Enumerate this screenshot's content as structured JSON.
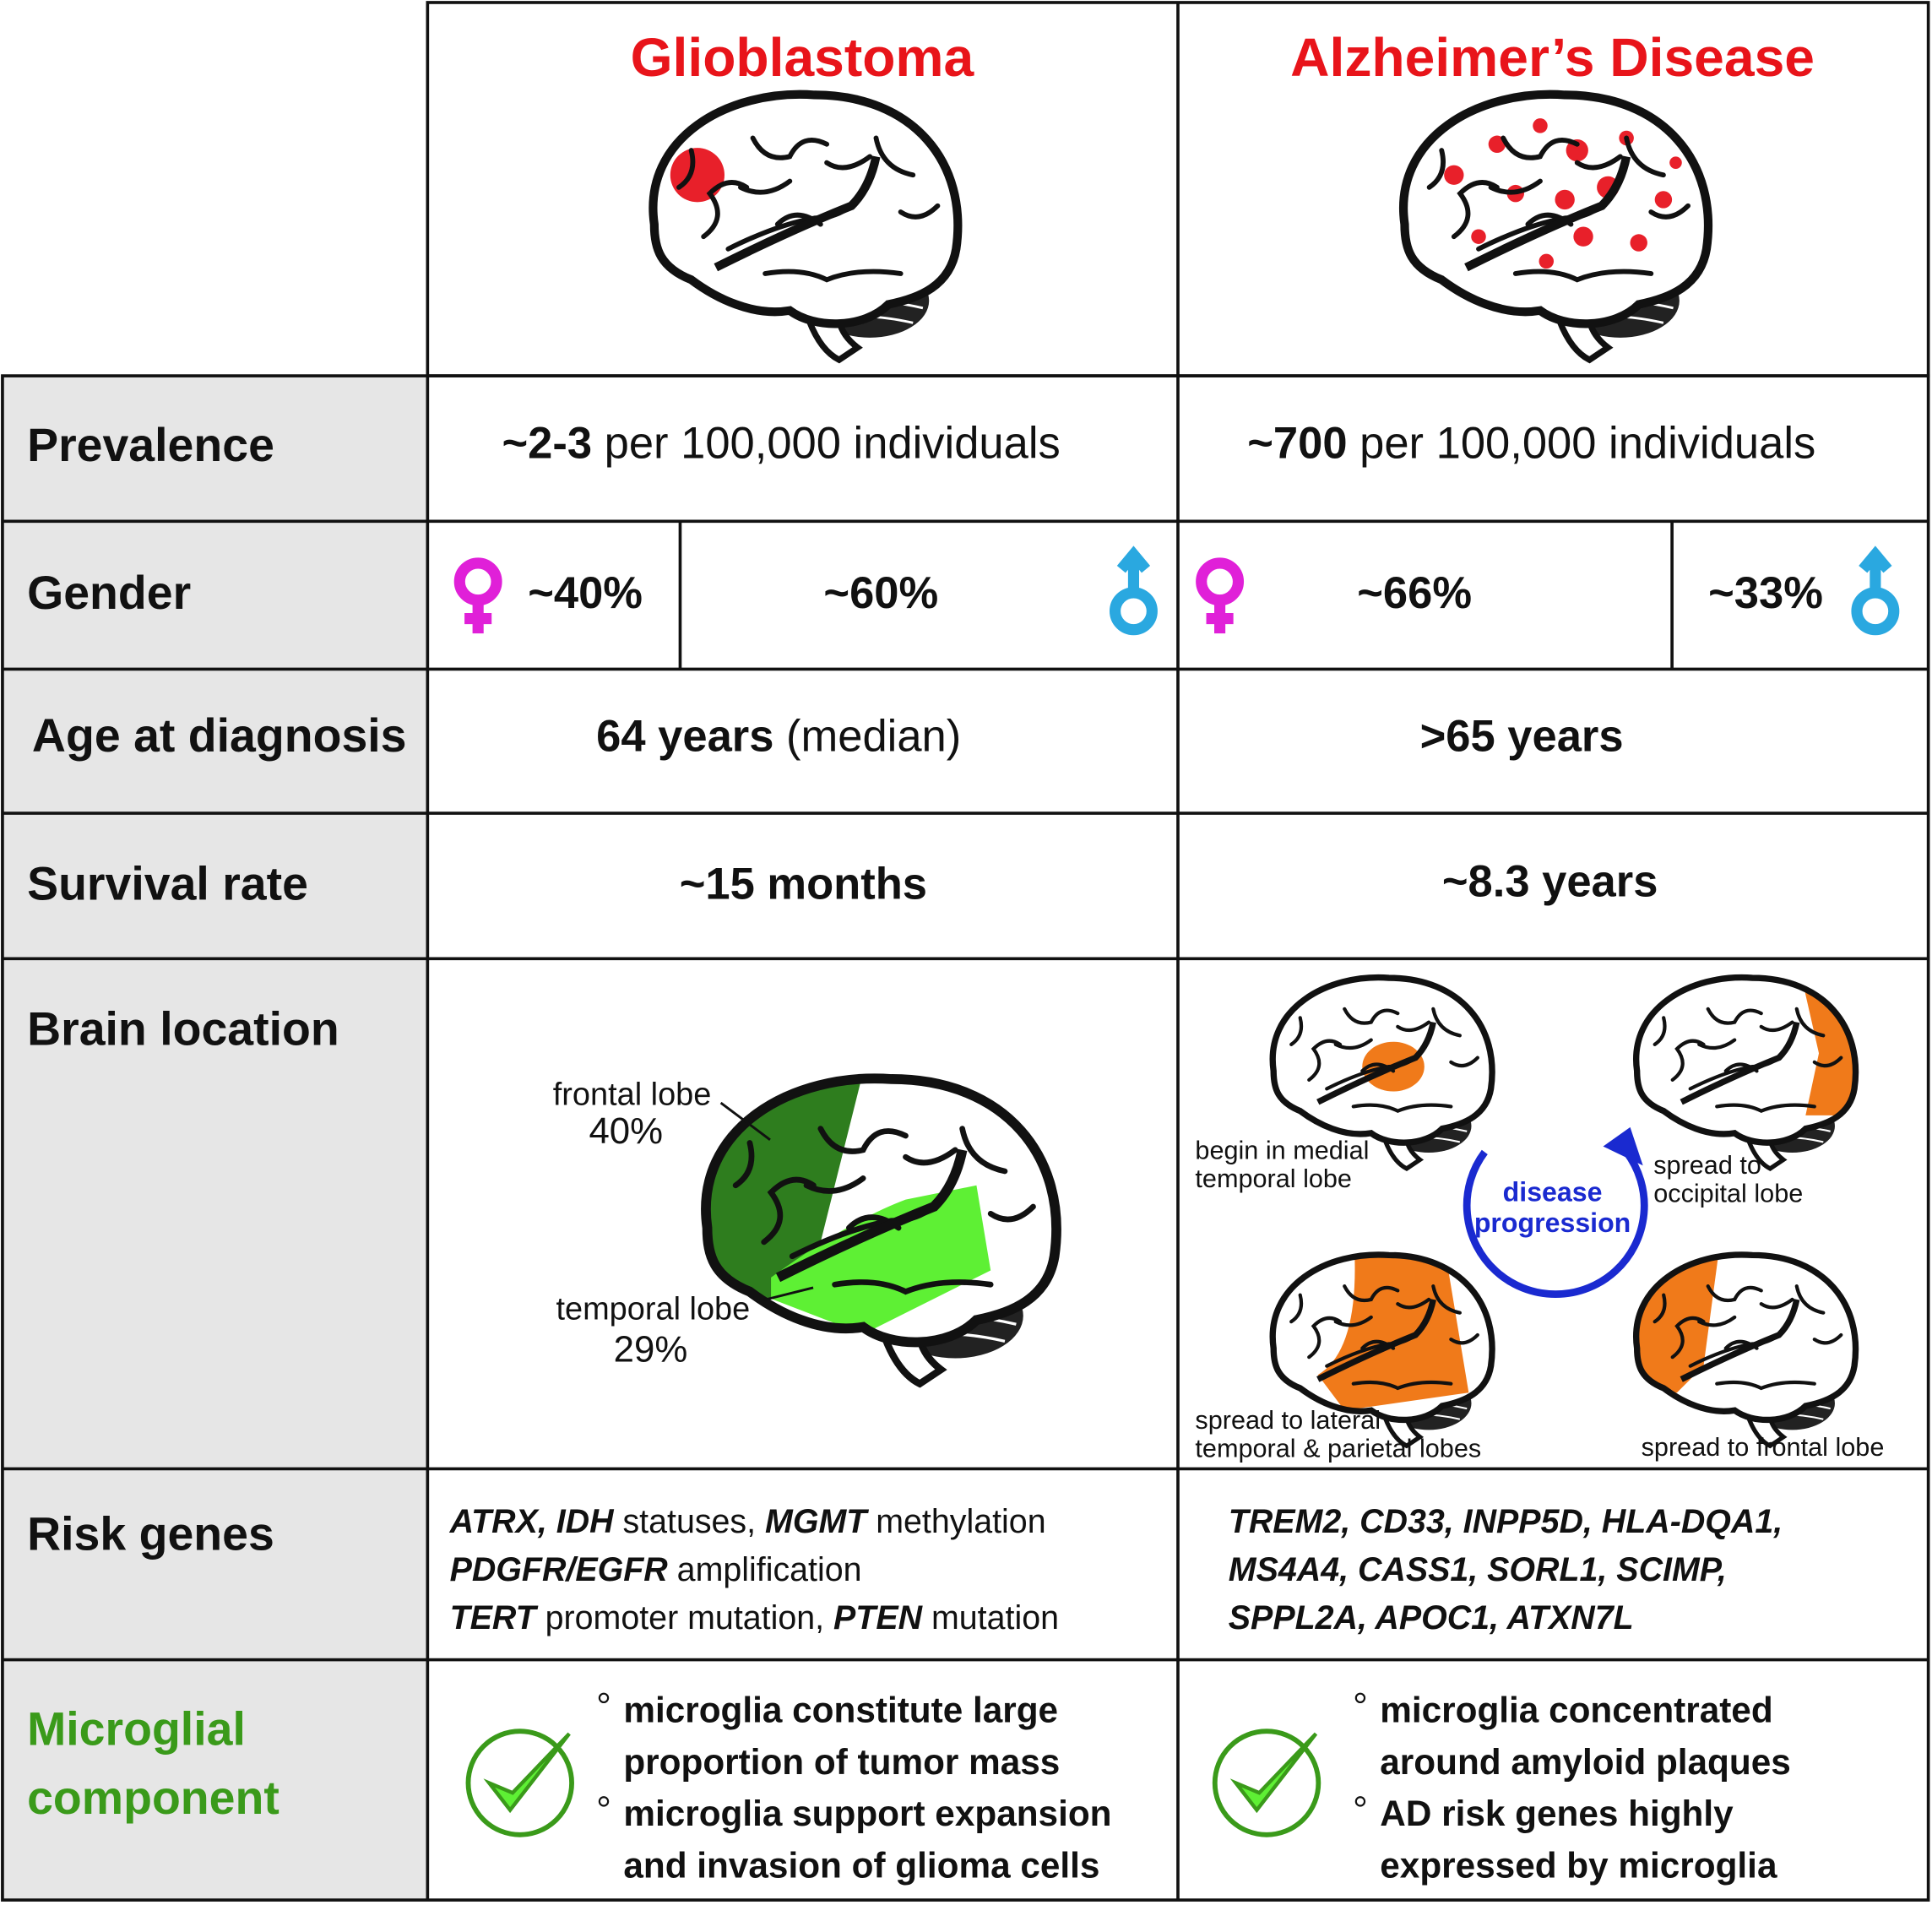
{
  "columns": [
    "Glioblastoma",
    "Alzheimer’s Disease"
  ],
  "prevalence": {
    "label": "Prevalence",
    "glioblastoma": {
      "bold": "~2-3",
      "text": " per 100,000 individuals"
    },
    "alzheimers": {
      "bold": "~700",
      "text": " per 100,000 individuals"
    }
  },
  "gender": {
    "label": "Gender",
    "glioblastoma": {
      "female": "~40%",
      "male": "~60%"
    },
    "alzheimers": {
      "female": "~66%",
      "male": "~33%"
    }
  },
  "age": {
    "label": "Age at diagnosis",
    "glioblastoma": {
      "bold": "64 years",
      "text": " (median)"
    },
    "alzheimers": {
      "bold": ">65 years"
    }
  },
  "survival": {
    "label": "Survival rate",
    "glioblastoma": "~15 months",
    "alzheimers": "~8.3 years"
  },
  "location": {
    "label": "Brain location",
    "glioblastoma": {
      "frontal": {
        "name": "frontal lobe",
        "pct": "40%"
      },
      "temporal": {
        "name": "temporal lobe",
        "pct": "29%"
      }
    },
    "alzheimers": {
      "progression": [
        "disease",
        "progression"
      ],
      "stages": [
        [
          "begin in medial",
          "temporal lobe"
        ],
        [
          "spread to",
          "occipital lobe"
        ],
        [
          "spread to lateral",
          "temporal & parietal lobes"
        ],
        [
          "spread to frontal lobe"
        ]
      ]
    }
  },
  "risk_genes": {
    "label": "Risk genes",
    "glioblastoma": [
      [
        {
          "italic": "ATRX, IDH"
        },
        {
          "text": " statuses, "
        },
        {
          "italic": "MGMT"
        },
        {
          "text": " methylation"
        }
      ],
      [
        {
          "italic": "PDGFR/EGFR"
        },
        {
          "text": " amplification"
        }
      ],
      [
        {
          "italic": "TERT"
        },
        {
          "text": " promoter mutation, "
        },
        {
          "italic": "PTEN"
        },
        {
          "text": " mutation"
        }
      ]
    ],
    "alzheimers": [
      [
        {
          "italic": "TREM2, CD33, INPP5D, HLA-DQA1,"
        }
      ],
      [
        {
          "italic": "MS4A4, CASS1, SORL1, SCIMP,"
        }
      ],
      [
        {
          "italic": "SPPL2A, APOC1, ATXN7L"
        }
      ]
    ]
  },
  "microglia": {
    "label": [
      "Microglial",
      "component"
    ],
    "glioblastoma": [
      [
        "microglia constitute large",
        "proportion of tumor mass"
      ],
      [
        "microglia support expansion",
        "and invasion of glioma cells"
      ]
    ],
    "alzheimers": [
      [
        "microglia concentrated",
        "around amyloid plaques"
      ],
      [
        "AD risk genes highly",
        "expressed by microglia"
      ]
    ]
  }
}
